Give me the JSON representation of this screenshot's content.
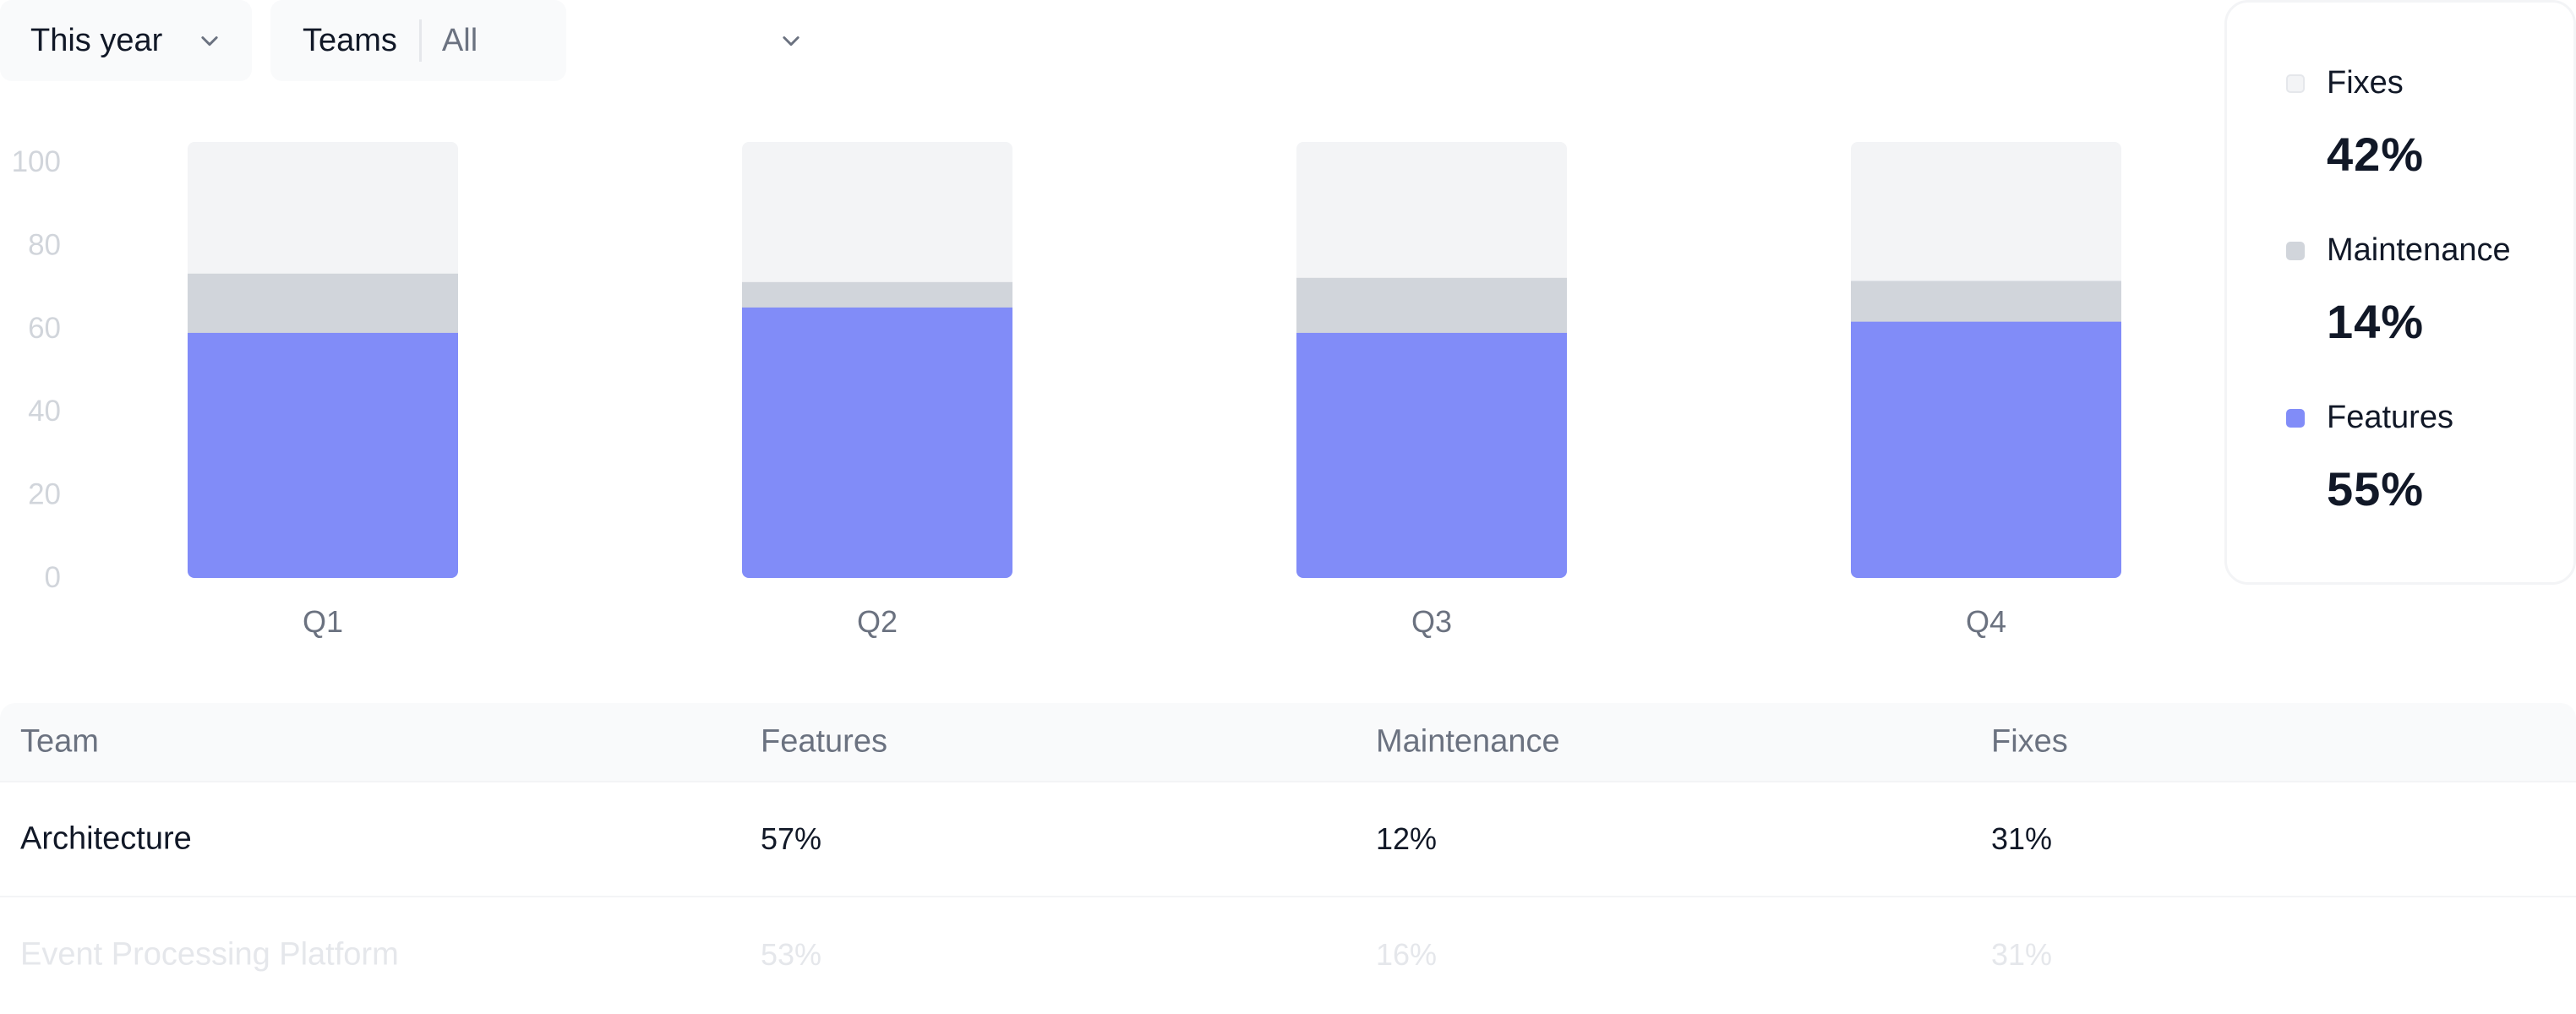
{
  "filters": {
    "period": {
      "label": "This year"
    },
    "teams": {
      "label": "Teams",
      "value": "All"
    }
  },
  "chart_data": {
    "type": "bar",
    "stacked": true,
    "categories": [
      "Q1",
      "Q2",
      "Q3",
      "Q4"
    ],
    "series": [
      {
        "name": "Features",
        "color": "#818cf8",
        "values": [
          58,
          64,
          58,
          63
        ]
      },
      {
        "name": "Maintenance",
        "color": "#d1d5db",
        "values": [
          14,
          6,
          13,
          10
        ]
      },
      {
        "name": "Fixes",
        "color": "#f3f4f6",
        "values": [
          31,
          33,
          32,
          34
        ]
      }
    ],
    "ylim": [
      0,
      100
    ],
    "yticks": [
      0,
      20,
      40,
      60,
      80,
      100
    ],
    "grid": false
  },
  "legend": [
    {
      "name": "Fixes",
      "value": "42%",
      "color": "#f3f4f6"
    },
    {
      "name": "Maintenance",
      "value": "14%",
      "color": "#d1d5db"
    },
    {
      "name": "Features",
      "value": "55%",
      "color": "#818cf8"
    }
  ],
  "table": {
    "headers": [
      "Team",
      "Features",
      "Maintenance",
      "Fixes"
    ],
    "rows": [
      [
        "Architecture",
        "57%",
        "12%",
        "31%"
      ],
      [
        "Event Processing Platform",
        "53%",
        "16%",
        "31%"
      ]
    ]
  }
}
